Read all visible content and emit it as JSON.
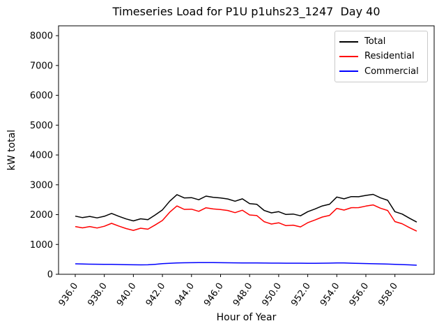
{
  "chart": {
    "title": "Timeseries Load for P1U p1uhs23_1247  Day 40",
    "xlabel": "Hour of Year",
    "ylabel": "kW total"
  },
  "chart_data": {
    "type": "line",
    "title": "Timeseries Load for P1U p1uhs23_1247  Day 40",
    "xlabel": "Hour of Year",
    "ylabel": "kW total",
    "grid": false,
    "legend_position": "upper right",
    "xlim": [
      934.85,
      960.7
    ],
    "ylim": [
      0,
      8330
    ],
    "xticks": [
      936,
      938,
      940,
      942,
      944,
      946,
      948,
      950,
      952,
      954,
      956,
      958
    ],
    "xtick_labels": [
      "936.0",
      "938.0",
      "940.0",
      "942.0",
      "944.0",
      "946.0",
      "948.0",
      "950.0",
      "952.0",
      "954.0",
      "956.0",
      "958.0"
    ],
    "yticks": [
      0,
      1000,
      2000,
      3000,
      4000,
      5000,
      6000,
      7000,
      8000
    ],
    "ytick_labels": [
      "0",
      "1000",
      "2000",
      "3000",
      "4000",
      "5000",
      "6000",
      "7000",
      "8000"
    ],
    "x": [
      936.0,
      936.5,
      937.0,
      937.5,
      938.0,
      938.5,
      939.0,
      939.5,
      940.0,
      940.5,
      941.0,
      941.5,
      942.0,
      942.5,
      943.0,
      943.5,
      944.0,
      944.5,
      945.0,
      945.5,
      946.0,
      946.5,
      947.0,
      947.5,
      948.0,
      948.5,
      949.0,
      949.5,
      950.0,
      950.5,
      951.0,
      951.5,
      952.0,
      952.5,
      953.0,
      953.5,
      954.0,
      954.5,
      955.0,
      955.5,
      956.0,
      956.5,
      957.0,
      957.5,
      958.0,
      958.5,
      959.0,
      959.5
    ],
    "series": [
      {
        "name": "Total",
        "color": "#000000",
        "values": [
          1950,
          1900,
          1940,
          1890,
          1945,
          2040,
          1945,
          1855,
          1790,
          1860,
          1830,
          1990,
          2160,
          2450,
          2670,
          2560,
          2570,
          2500,
          2620,
          2580,
          2560,
          2525,
          2450,
          2530,
          2370,
          2345,
          2140,
          2060,
          2100,
          2005,
          2020,
          1960,
          2100,
          2190,
          2290,
          2350,
          2590,
          2530,
          2605,
          2600,
          2645,
          2680,
          2565,
          2480,
          2100,
          2020,
          1880,
          1750
        ]
      },
      {
        "name": "Residential",
        "color": "#ff0000",
        "values": [
          1600,
          1555,
          1600,
          1552,
          1610,
          1708,
          1617,
          1533,
          1472,
          1545,
          1512,
          1655,
          1805,
          2080,
          2290,
          2175,
          2182,
          2110,
          2230,
          2190,
          2172,
          2139,
          2066,
          2148,
          1990,
          1967,
          1764,
          1685,
          1726,
          1632,
          1648,
          1589,
          1730,
          1820,
          1919,
          1976,
          2208,
          2152,
          2233,
          2234,
          2285,
          2326,
          2217,
          2138,
          1766,
          1694,
          1564,
          1445
        ]
      },
      {
        "name": "Commercial",
        "color": "#0000ff",
        "values": [
          350,
          345,
          340,
          338,
          335,
          332,
          328,
          322,
          318,
          315,
          318,
          335,
          355,
          370,
          380,
          385,
          388,
          390,
          390,
          390,
          388,
          386,
          384,
          382,
          380,
          378,
          376,
          375,
          374,
          373,
          372,
          371,
          370,
          370,
          371,
          374,
          382,
          378,
          372,
          366,
          360,
          354,
          348,
          342,
          334,
          326,
          316,
          305
        ]
      }
    ],
    "line_width": 1.5
  }
}
